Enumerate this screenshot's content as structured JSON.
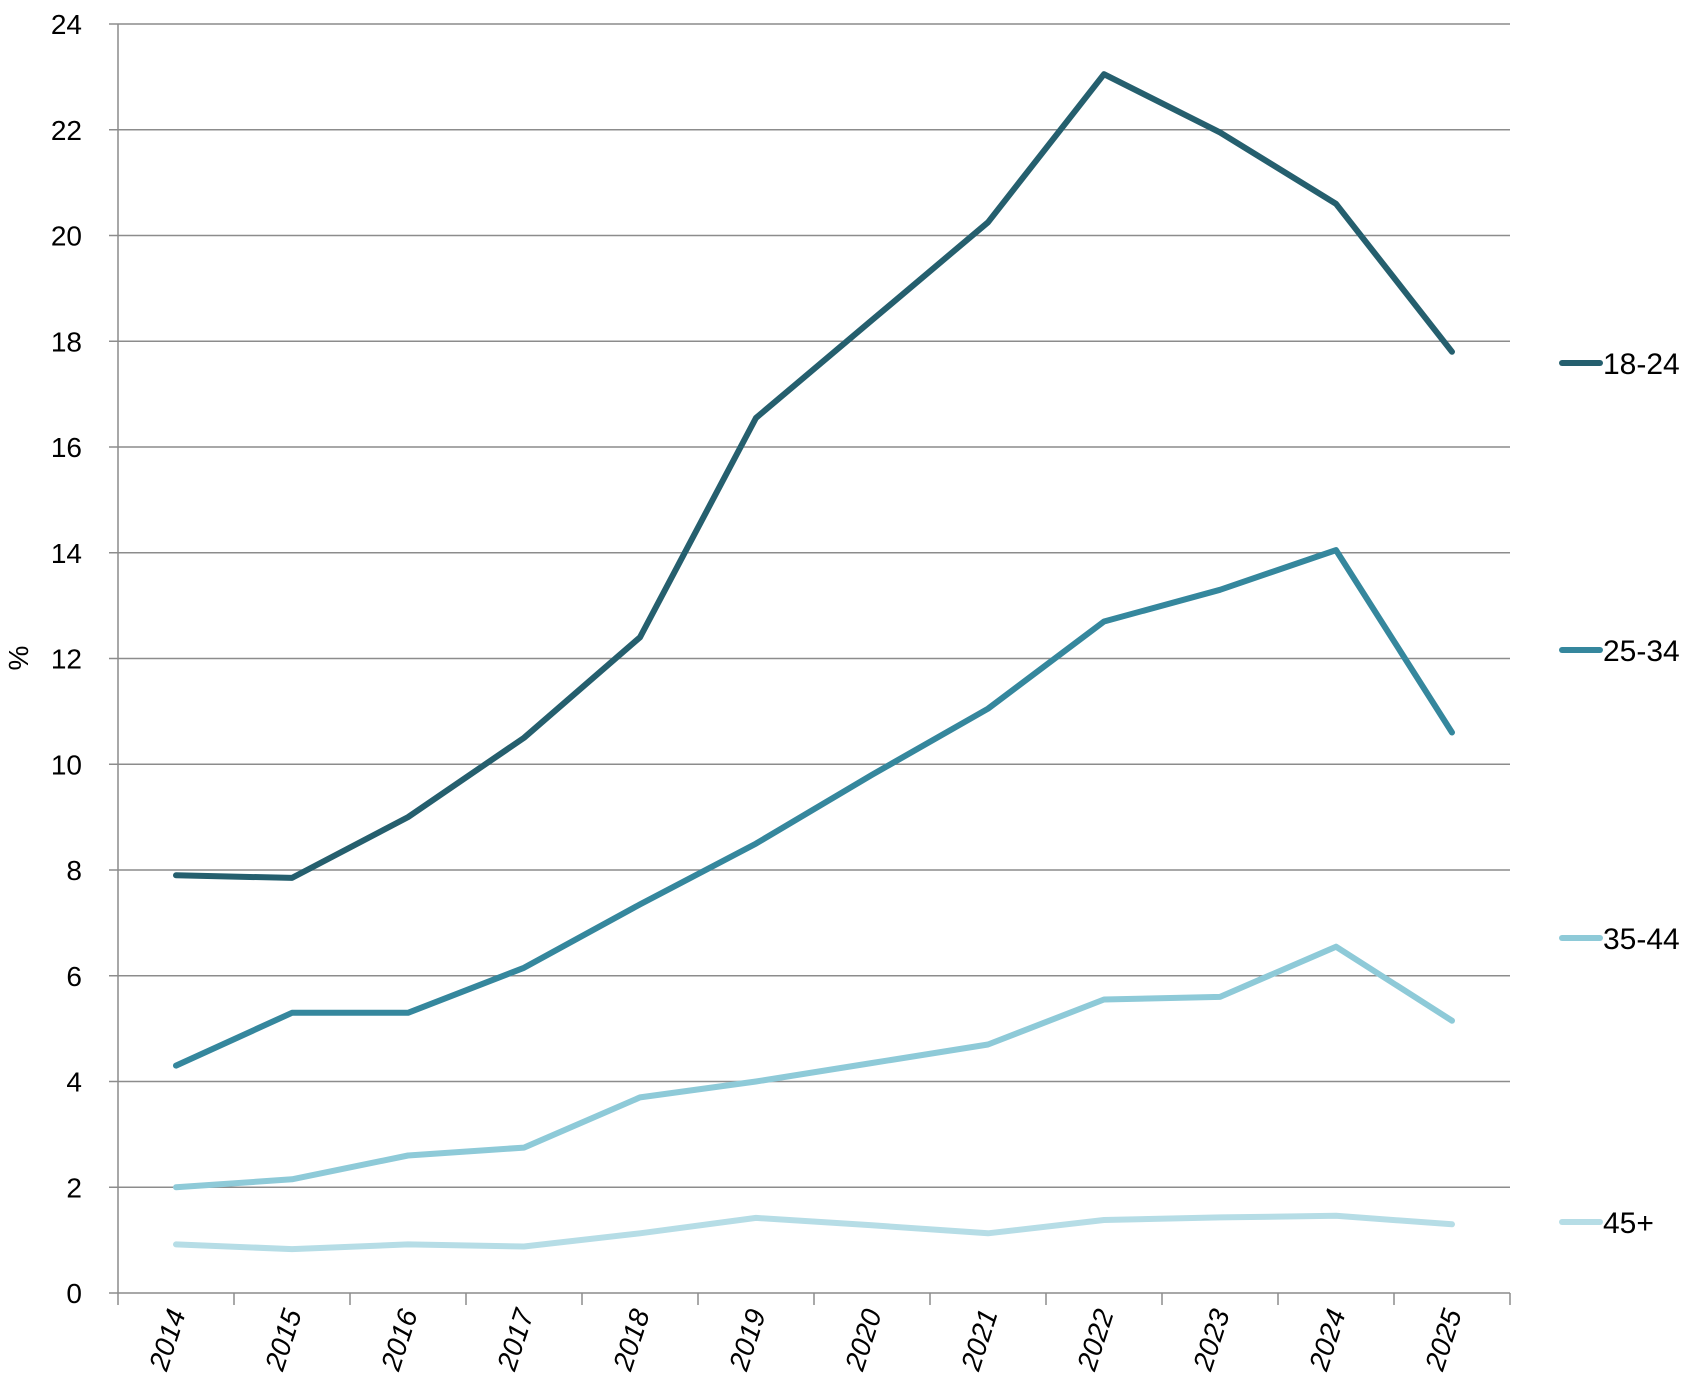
{
  "chart_data": {
    "type": "line",
    "title": "",
    "xlabel": "",
    "ylabel": "%",
    "ylim": [
      0,
      24
    ],
    "yticks": [
      "0",
      "2",
      "4",
      "6",
      "8",
      "10",
      "12",
      "14",
      "16",
      "18",
      "20",
      "22",
      "24"
    ],
    "categories": [
      "2014",
      "2015",
      "2016",
      "2017",
      "2018",
      "2019",
      "2020",
      "2021",
      "2022",
      "2023",
      "2024",
      "2025"
    ],
    "grid": "horizontal",
    "legend_placement": "right",
    "series": [
      {
        "name": "18-24",
        "color": "#255f6e",
        "values": [
          7.9,
          7.85,
          9.0,
          10.5,
          12.4,
          16.55,
          18.4,
          20.25,
          23.05,
          21.95,
          20.6,
          17.8
        ]
      },
      {
        "name": "25-34",
        "color": "#35879d",
        "values": [
          4.3,
          5.3,
          5.3,
          6.15,
          7.35,
          8.5,
          9.8,
          11.05,
          12.7,
          13.3,
          14.05,
          10.6
        ]
      },
      {
        "name": "35-44",
        "color": "#8ecad8",
        "values": [
          2.0,
          2.15,
          2.6,
          2.75,
          3.7,
          4.0,
          4.35,
          4.7,
          5.55,
          5.6,
          6.55,
          5.15
        ]
      },
      {
        "name": "45+",
        "color": "#b6dde6",
        "values": [
          0.92,
          0.83,
          0.92,
          0.88,
          1.13,
          1.42,
          1.28,
          1.13,
          1.38,
          1.43,
          1.46,
          1.3
        ]
      }
    ]
  }
}
